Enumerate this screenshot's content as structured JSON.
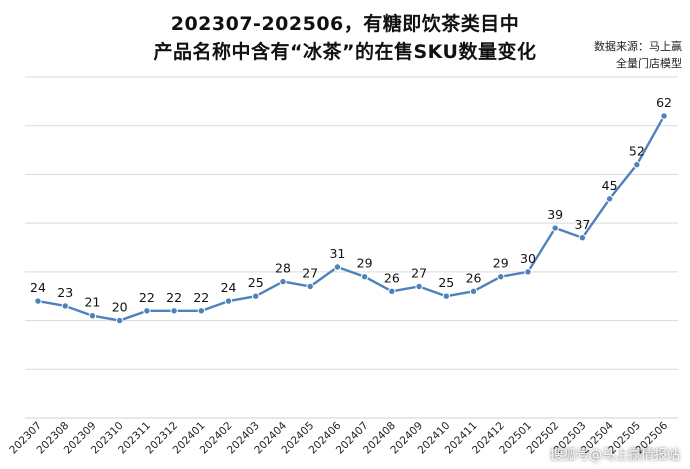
{
  "title": {
    "line1": "202307-202506，有糖即饮茶类目中",
    "line2": "产品名称中含有“冰茶”的在售SKU数量变化"
  },
  "source": {
    "line1": "数据来源：马上赢",
    "line2": "全量门店模型"
  },
  "watermark": "搜狐号@马上赢情报站",
  "chart_data": {
    "type": "line",
    "title": "202307-202506，有糖即饮茶类目中产品名称中含有“冰茶”的在售SKU数量变化",
    "xlabel": "",
    "ylabel": "",
    "ylim": [
      0,
      70
    ],
    "grid": true,
    "legend": "none",
    "color": "#4f81bd",
    "categories": [
      "202307",
      "202308",
      "202309",
      "202310",
      "202311",
      "202312",
      "202401",
      "202402",
      "202403",
      "202404",
      "202405",
      "202406",
      "202407",
      "202408",
      "202409",
      "202410",
      "202411",
      "202412",
      "202501",
      "202502",
      "202503",
      "202504",
      "202505",
      "202506"
    ],
    "series": [
      {
        "values": [
          24,
          23,
          21,
          20,
          22,
          22,
          22,
          24,
          25,
          28,
          27,
          31,
          29,
          26,
          27,
          25,
          26,
          29,
          30,
          39,
          37,
          45,
          52,
          62
        ]
      }
    ]
  }
}
